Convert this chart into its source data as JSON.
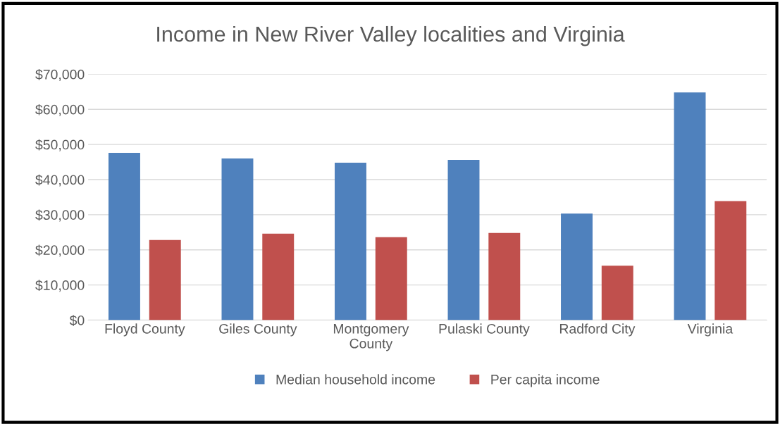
{
  "chart_data": {
    "type": "bar",
    "title": "Income in New River Valley localities and Virginia",
    "categories": [
      "Floyd County",
      "Giles County",
      "Montgomery\nCounty",
      "Pulaski County",
      "Radford City",
      "Virginia"
    ],
    "series": [
      {
        "name": "Median household income",
        "color": "#4f81bd",
        "values": [
          47600,
          46000,
          44800,
          45600,
          30300,
          64800
        ]
      },
      {
        "name": "Per capita income",
        "color": "#c0504d",
        "values": [
          22800,
          24600,
          23600,
          24800,
          15500,
          33900
        ]
      }
    ],
    "ylim": [
      0,
      70000
    ],
    "yticks": [
      {
        "value": 0,
        "label": "$0"
      },
      {
        "value": 10000,
        "label": "$10,000"
      },
      {
        "value": 20000,
        "label": "$20,000"
      },
      {
        "value": 30000,
        "label": "$30,000"
      },
      {
        "value": 40000,
        "label": "$40,000"
      },
      {
        "value": 50000,
        "label": "$50,000"
      },
      {
        "value": 60000,
        "label": "$60,000"
      },
      {
        "value": 70000,
        "label": "$70,000"
      }
    ],
    "grid": "y",
    "legend": "bottom"
  }
}
